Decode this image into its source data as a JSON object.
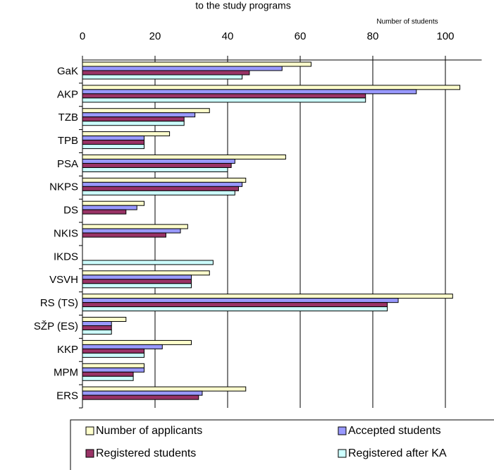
{
  "chart_data": {
    "type": "hbar",
    "title": "to the study programs",
    "x_label": "Number of students",
    "categories": [
      "GaK",
      "AKP",
      "TZB",
      "TPB",
      "PSA",
      "NKPS",
      "DS",
      "NKIS",
      "IKDS",
      "VSVH",
      "RS (TS)",
      "SŽP (ES)",
      "KKP",
      "MPM",
      "ERS"
    ],
    "series": [
      {
        "name": "Number of applicants",
        "color": "#ffffcc",
        "values": [
          63,
          104,
          35,
          24,
          56,
          45,
          17,
          29,
          null,
          35,
          102,
          12,
          30,
          17,
          45
        ]
      },
      {
        "name": "Accepted students",
        "color": "#9999ff",
        "values": [
          55,
          92,
          31,
          17,
          42,
          44,
          15,
          27,
          null,
          30,
          87,
          8,
          22,
          17,
          33
        ]
      },
      {
        "name": "Registered students",
        "color": "#993366",
        "values": [
          46,
          78,
          28,
          17,
          41,
          43,
          12,
          23,
          null,
          30,
          84,
          8,
          17,
          14,
          32
        ]
      },
      {
        "name": "Registered after KA",
        "color": "#ccffff",
        "values": [
          44,
          78,
          28,
          17,
          40,
          42,
          null,
          null,
          36,
          30,
          84,
          8,
          17,
          14,
          null
        ]
      }
    ],
    "xlim": [
      0,
      110
    ],
    "xticks": [
      0,
      20,
      40,
      60,
      80,
      100
    ],
    "grid": true,
    "legend": "bottom"
  }
}
